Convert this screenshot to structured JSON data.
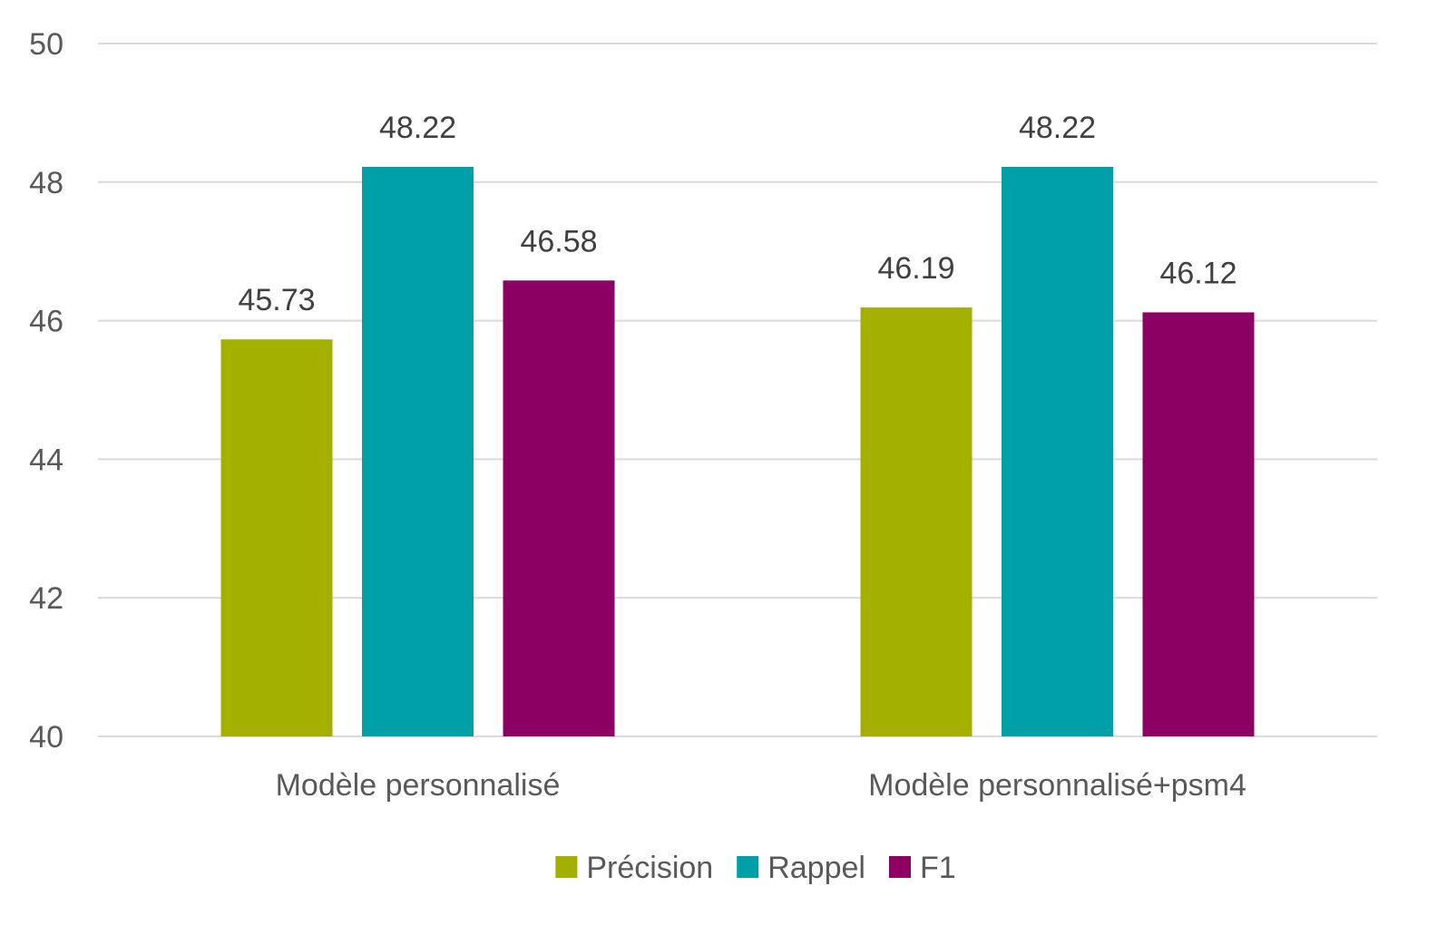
{
  "chart_data": {
    "type": "bar",
    "title": "",
    "xlabel": "",
    "ylabel": "",
    "categories": [
      "Modèle personnalisé",
      "Modèle personnalisé+psm4"
    ],
    "series": [
      {
        "name": "Précision",
        "values": [
          45.73,
          46.19
        ],
        "color": "#a3b000"
      },
      {
        "name": "Rappel",
        "values": [
          48.22,
          48.22
        ],
        "color": "#00a0a8"
      },
      {
        "name": "F1",
        "values": [
          46.58,
          46.12
        ],
        "color": "#8b0062"
      }
    ],
    "ylim": [
      40,
      50
    ],
    "yticks": [
      40,
      42,
      44,
      46,
      48,
      50
    ],
    "grid": true,
    "legend": "bottom-center",
    "data_labels": true
  }
}
